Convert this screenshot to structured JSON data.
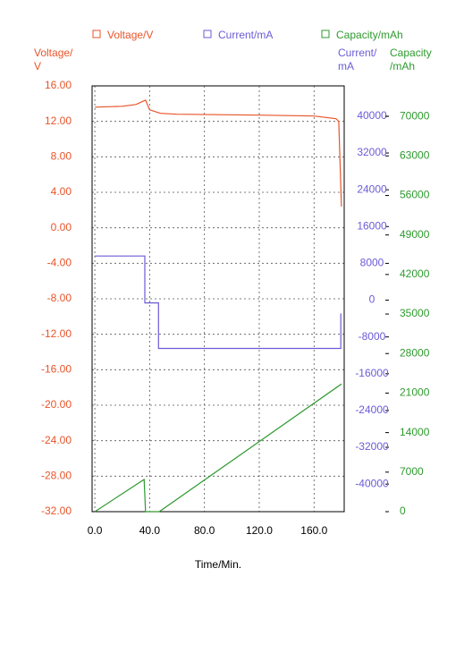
{
  "chart_data": {
    "type": "line",
    "legend": "top",
    "grid": true,
    "xlabel": "Time/Min.",
    "ylabel": "Voltage/\nV",
    "y2label": "Current/\nmA",
    "y3label": "Capacity\n/mAh",
    "xlim": [
      -2,
      182
    ],
    "xticks": [
      {
        "value": 0,
        "label": "0.0"
      },
      {
        "value": 40,
        "label": "40.0"
      },
      {
        "value": 80,
        "label": "80.0"
      },
      {
        "value": 120,
        "label": "120.0"
      },
      {
        "value": 160,
        "label": "160.0"
      }
    ],
    "ylim": [
      -32,
      16
    ],
    "yticks": [
      {
        "value": 16,
        "label": "16.00"
      },
      {
        "value": 12,
        "label": "12.00"
      },
      {
        "value": 8,
        "label": "8.00"
      },
      {
        "value": 4,
        "label": "4.00"
      },
      {
        "value": 0,
        "label": "0.00"
      },
      {
        "value": -4,
        "label": "-4.00"
      },
      {
        "value": -8,
        "label": "-8.00"
      },
      {
        "value": -12,
        "label": "-12.00"
      },
      {
        "value": -16,
        "label": "-16.00"
      },
      {
        "value": -20,
        "label": "-20.00"
      },
      {
        "value": -24,
        "label": "-24.00"
      },
      {
        "value": -28,
        "label": "-28.00"
      },
      {
        "value": -32,
        "label": "-32.00"
      }
    ],
    "y2lim": [
      -46000,
      46600
    ],
    "y2ticks": [
      40000,
      32000,
      24000,
      16000,
      8000,
      0,
      -8000,
      -16000,
      -24000,
      -32000,
      -40000
    ],
    "y3lim": [
      0,
      75400
    ],
    "y3ticks": [
      70000,
      63000,
      56000,
      49000,
      42000,
      35000,
      28000,
      21000,
      14000,
      7000,
      0
    ],
    "series": [
      {
        "name": "Voltage/V",
        "color": "#e8542a",
        "axis": "y",
        "x": [
          0,
          20,
          30,
          37,
          40,
          48,
          60,
          120,
          160,
          176,
          178,
          180
        ],
        "values": [
          13.6,
          13.7,
          13.9,
          14.4,
          13.3,
          12.9,
          12.8,
          12.7,
          12.6,
          12.3,
          12.0,
          2.4
        ]
      },
      {
        "name": "Current/mA",
        "color": "#6b5bd6",
        "axis": "y2",
        "x": [
          0,
          36.5,
          36.5,
          46.5,
          46.5,
          179.5,
          179.5
        ],
        "values": [
          9600,
          9600,
          -600,
          -600,
          -10500,
          -10500,
          -2900
        ]
      },
      {
        "name": "Capacity/mAh",
        "color": "#2e9a2e",
        "axis": "y3",
        "x": [
          0,
          36,
          37,
          47,
          180
        ],
        "values": [
          0,
          5700,
          0,
          0,
          22600
        ]
      }
    ]
  }
}
